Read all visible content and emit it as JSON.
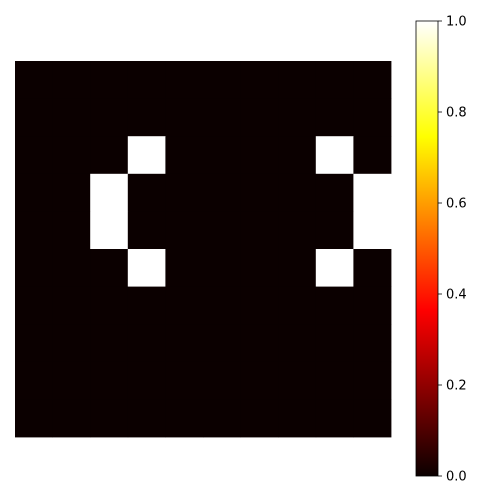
{
  "chart_data": {
    "type": "heatmap",
    "title": "",
    "xlabel": "",
    "ylabel": "",
    "colormap": "hot",
    "vmin": 0.0,
    "vmax": 1.0,
    "grid": false,
    "values": [
      [
        0,
        0,
        0,
        0,
        0,
        0,
        0,
        0,
        0,
        0
      ],
      [
        0,
        0,
        0,
        0,
        0,
        0,
        0,
        0,
        0,
        0
      ],
      [
        0,
        0,
        0,
        1,
        0,
        0,
        0,
        0,
        1,
        0
      ],
      [
        0,
        0,
        1,
        0,
        0,
        0,
        0,
        0,
        0,
        1
      ],
      [
        0,
        0,
        1,
        0,
        0,
        0,
        0,
        0,
        0,
        1
      ],
      [
        0,
        0,
        0,
        1,
        0,
        0,
        0,
        0,
        1,
        0
      ],
      [
        0,
        0,
        0,
        0,
        0,
        0,
        0,
        0,
        0,
        0
      ],
      [
        0,
        0,
        0,
        0,
        0,
        0,
        0,
        0,
        0,
        0
      ],
      [
        0,
        0,
        0,
        0,
        0,
        0,
        0,
        0,
        0,
        0
      ],
      [
        0,
        0,
        0,
        0,
        0,
        0,
        0,
        0,
        0,
        0
      ]
    ],
    "colorbar": {
      "ticks": [
        0.0,
        0.2,
        0.4,
        0.6,
        0.8,
        1.0
      ],
      "tick_labels": [
        "0.0",
        "0.2",
        "0.4",
        "0.6",
        "0.8",
        "1.0"
      ]
    }
  }
}
